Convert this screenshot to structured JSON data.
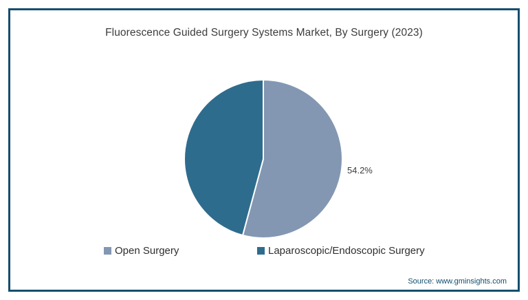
{
  "title": "Fluorescence Guided Surgery Systems Market, By Surgery (2023)",
  "frame": {
    "border_color": "#154E6E"
  },
  "chart_data": {
    "type": "pie",
    "title": "Fluorescence Guided Surgery Systems Market, By Surgery (2023)",
    "start_angle_deg": 0,
    "direction": "clockwise",
    "legend_position": "bottom",
    "divider_stroke_color": "#FFFFFF",
    "slices": [
      {
        "label": "Open Surgery",
        "value": 54.2,
        "percent_label": "54.2%",
        "color": "#8397B2"
      },
      {
        "label": "Laparoscopic/Endoscopic Surgery",
        "value": 45.8,
        "percent_label": "",
        "color": "#2E6C8D"
      }
    ]
  },
  "source": "Source: www.gminsights.com"
}
